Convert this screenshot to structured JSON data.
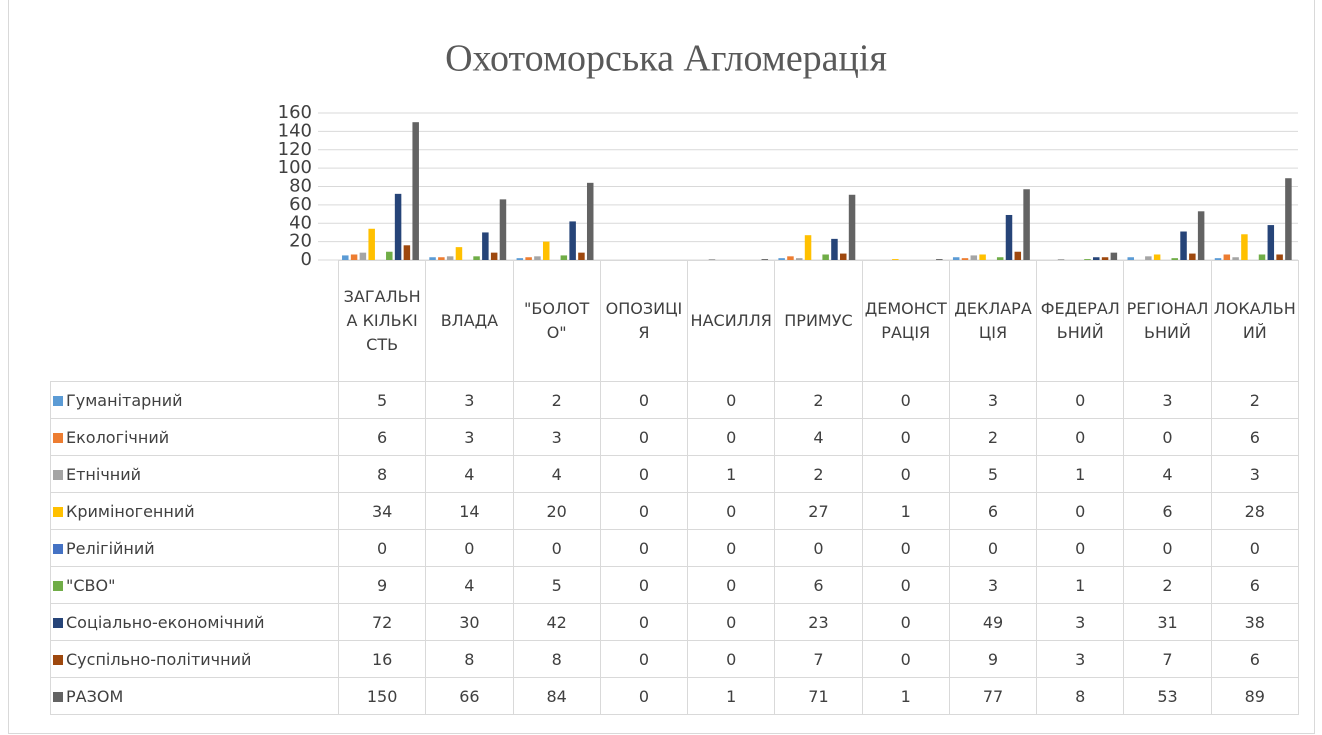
{
  "chart_data": {
    "type": "bar",
    "title": "Охотоморська Агломерація",
    "categories": [
      "ЗАГАЛЬНА КІЛЬКІСТЬ",
      "ВЛАДА",
      "\"БОЛОТО\"",
      "ОПОЗИЦІЯ",
      "НАСИЛЛЯ",
      "ПРИМУС",
      "ДЕМОНСТРАЦІЯ",
      "ДЕКЛАРАЦІЯ",
      "ФЕДЕРАЛЬНИЙ",
      "РЕГІОНАЛЬНИЙ",
      "ЛОКАЛЬНИЙ"
    ],
    "series": [
      {
        "name": "Гуманітарний",
        "color": "#5b9bd5",
        "values": [
          5,
          3,
          2,
          0,
          0,
          2,
          0,
          3,
          0,
          3,
          2
        ]
      },
      {
        "name": "Екологічний",
        "color": "#ed7d31",
        "values": [
          6,
          3,
          3,
          0,
          0,
          4,
          0,
          2,
          0,
          0,
          6
        ]
      },
      {
        "name": "Етнічний",
        "color": "#a5a5a5",
        "values": [
          8,
          4,
          4,
          0,
          1,
          2,
          0,
          5,
          1,
          4,
          3
        ]
      },
      {
        "name": "Криміногенний",
        "color": "#ffc000",
        "values": [
          34,
          14,
          20,
          0,
          0,
          27,
          1,
          6,
          0,
          6,
          28
        ]
      },
      {
        "name": "Релігійний",
        "color": "#4472c4",
        "values": [
          0,
          0,
          0,
          0,
          0,
          0,
          0,
          0,
          0,
          0,
          0
        ]
      },
      {
        "name": "\"СВО\"",
        "color": "#70ad47",
        "values": [
          9,
          4,
          5,
          0,
          0,
          6,
          0,
          3,
          1,
          2,
          6
        ]
      },
      {
        "name": "Соціально-економічний",
        "color": "#264478",
        "values": [
          72,
          30,
          42,
          0,
          0,
          23,
          0,
          49,
          3,
          31,
          38
        ]
      },
      {
        "name": "Суспільно-політичний",
        "color": "#9e480e",
        "values": [
          16,
          8,
          8,
          0,
          0,
          7,
          0,
          9,
          3,
          7,
          6
        ]
      },
      {
        "name": "РАЗОМ",
        "color": "#636363",
        "values": [
          150,
          66,
          84,
          0,
          1,
          71,
          1,
          77,
          8,
          53,
          89
        ]
      }
    ],
    "ylim": [
      0,
      160
    ],
    "yticks": [
      0,
      20,
      40,
      60,
      80,
      100,
      120,
      140,
      160
    ],
    "grid": true
  }
}
